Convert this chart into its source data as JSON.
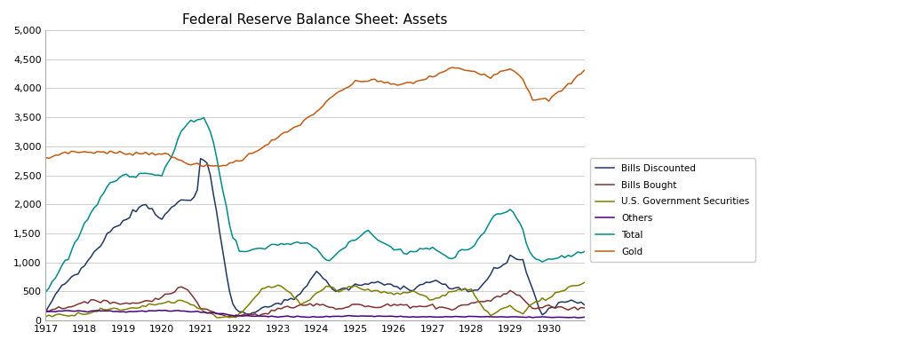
{
  "title": "Federal Reserve Balance Sheet: Assets",
  "legend": [
    "Bills Discounted",
    "Bills Bought",
    "U.S. Government Securities",
    "Others",
    "Total",
    "Gold"
  ],
  "colors": {
    "bills_discounted": "#1F3864",
    "bills_bought": "#833131",
    "us_gov_securities": "#7F7F00",
    "others": "#4B0082",
    "total": "#008B8B",
    "gold": "#C55A11"
  },
  "ylim": [
    0,
    5000
  ],
  "yticks": [
    0,
    500,
    1000,
    1500,
    2000,
    2500,
    3000,
    3500,
    4000,
    4500,
    5000
  ],
  "background": "#FFFFFF",
  "grid_color": "#C8C8C8"
}
